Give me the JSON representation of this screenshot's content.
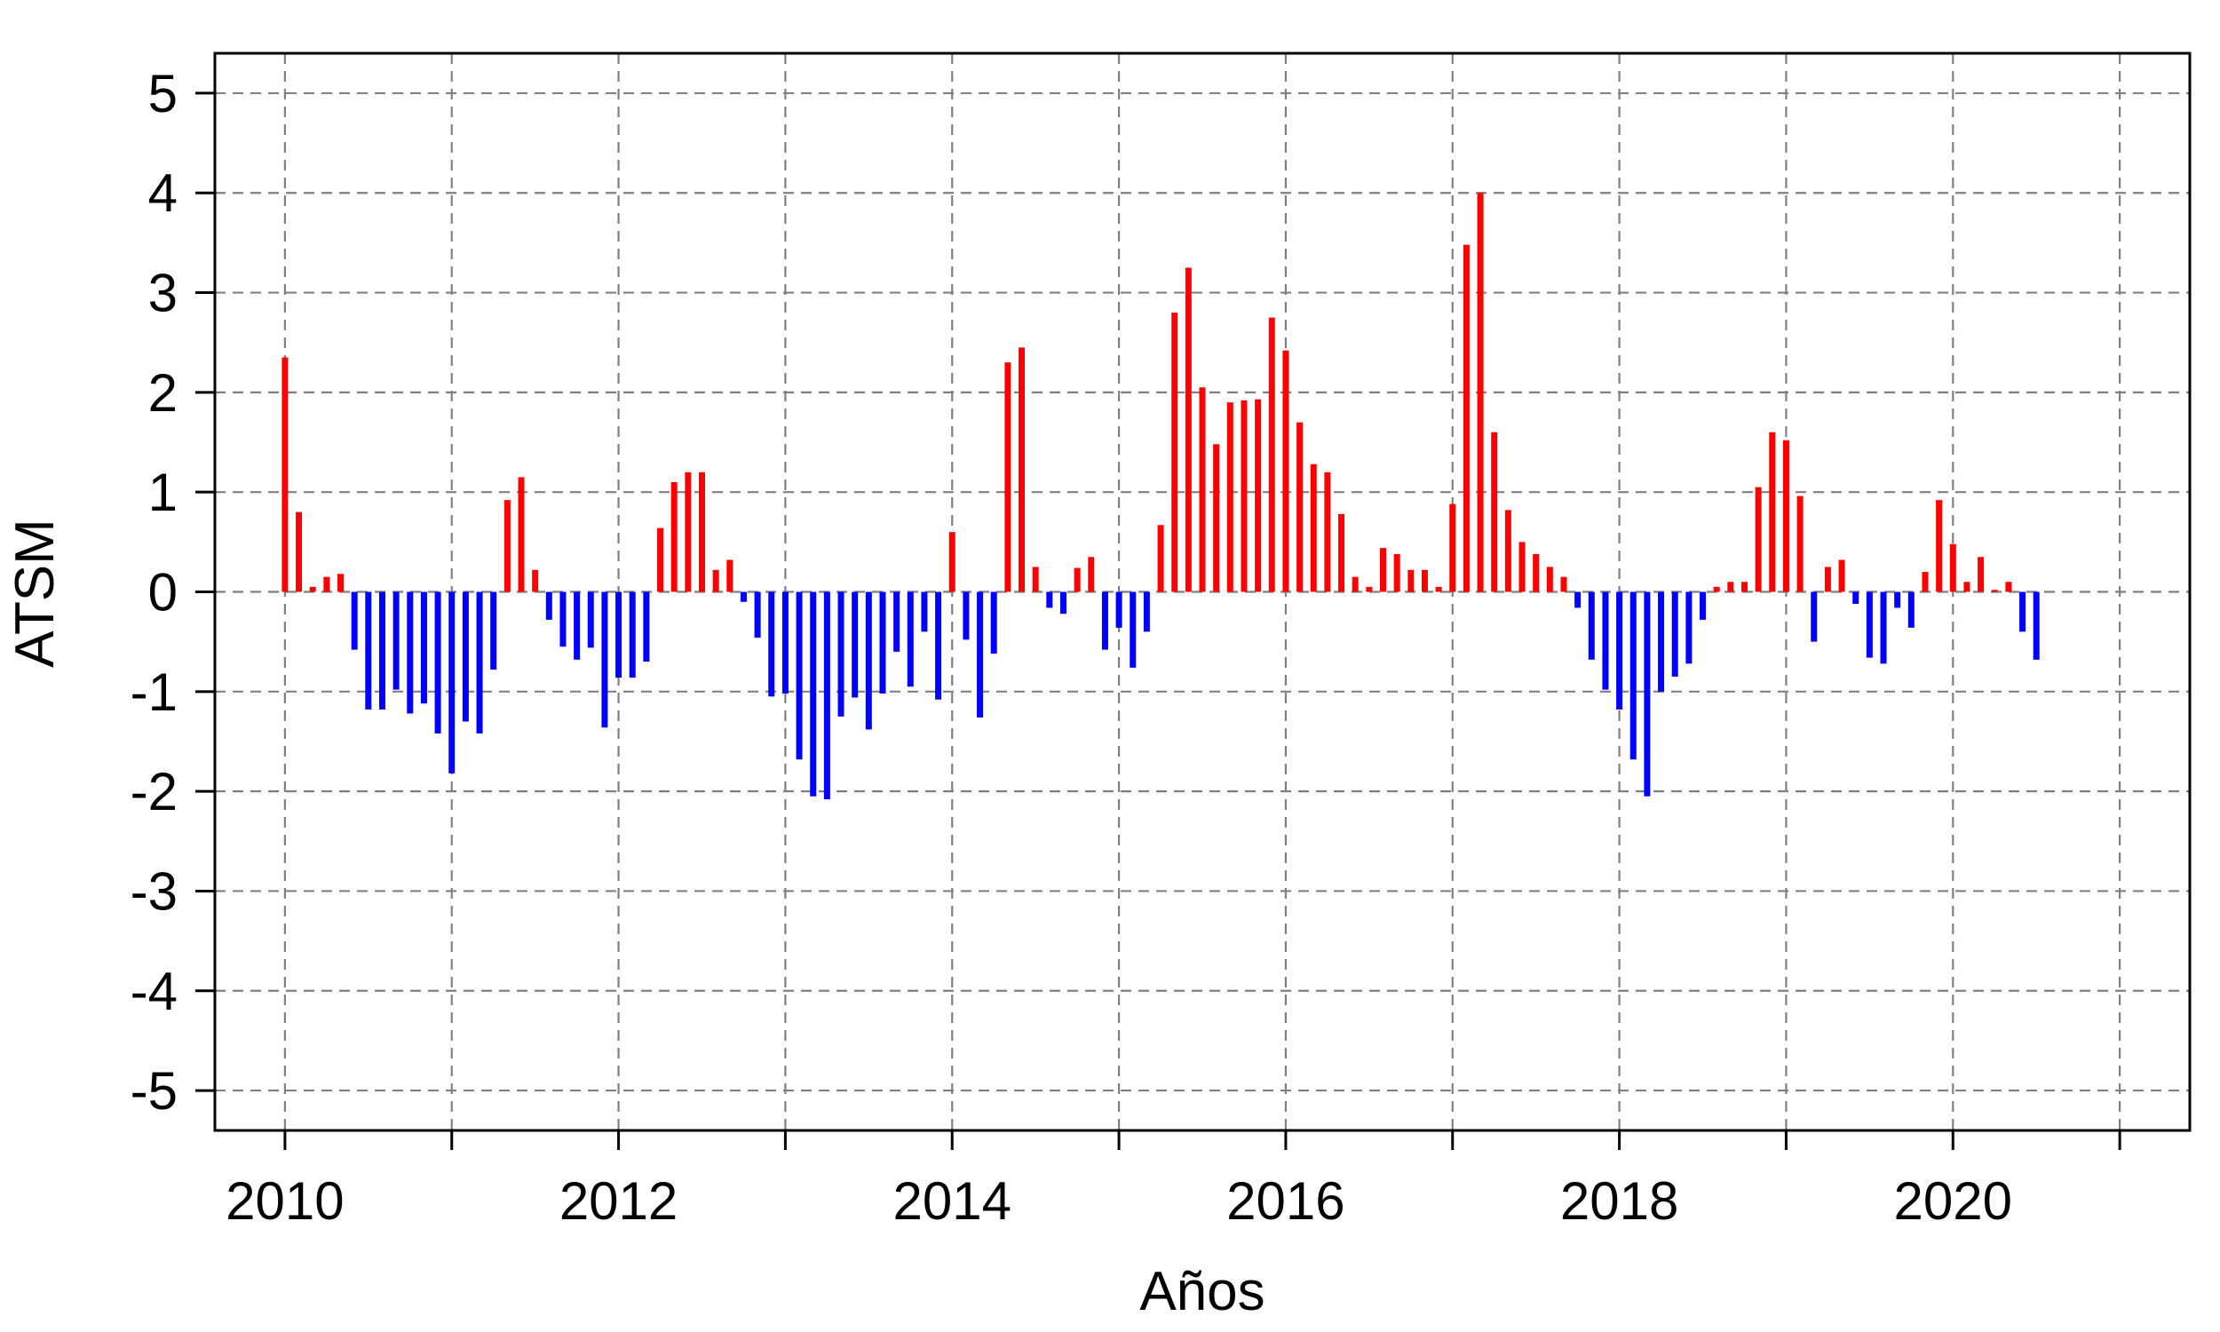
{
  "chart_data": {
    "type": "bar",
    "xlabel": "Años",
    "ylabel": "ATSM",
    "xlim": [
      2009.58,
      2021.42
    ],
    "ylim": [
      -5.4,
      5.4
    ],
    "x_ticks": [
      2010,
      2011,
      2012,
      2013,
      2014,
      2015,
      2016,
      2017,
      2018,
      2019,
      2020,
      2021
    ],
    "x_tick_labels": [
      "2010",
      "2012",
      "2014",
      "2016",
      "2018",
      "2020"
    ],
    "y_ticks": [
      -5,
      -4,
      -3,
      -2,
      -1,
      0,
      1,
      2,
      3,
      4,
      5
    ],
    "y_tick_labels": [
      "-5",
      "-4",
      "-3",
      "-2",
      "-1",
      "0",
      "1",
      "2",
      "3",
      "4",
      "5"
    ],
    "grid": true,
    "colors": {
      "positive": "#ff0000",
      "negative": "#0000ff",
      "grid": "#808080",
      "frame": "#000000"
    },
    "x_start": "2010-01",
    "x_step": "1 month",
    "values": [
      2.35,
      0.8,
      0.05,
      0.15,
      0.18,
      -0.58,
      -1.18,
      -1.18,
      -0.98,
      -1.22,
      -1.12,
      -1.42,
      -1.82,
      -1.3,
      -1.42,
      -0.78,
      0.92,
      1.15,
      0.22,
      -0.28,
      -0.55,
      -0.68,
      -0.56,
      -1.36,
      -0.86,
      -0.86,
      -0.7,
      0.64,
      1.1,
      1.2,
      1.2,
      0.22,
      0.32,
      -0.1,
      -0.46,
      -1.05,
      -1.02,
      -1.68,
      -2.05,
      -2.08,
      -1.25,
      -1.06,
      -1.38,
      -1.02,
      -0.6,
      -0.95,
      -0.4,
      -1.08,
      0.6,
      -0.48,
      -1.26,
      -0.62,
      2.3,
      2.45,
      0.25,
      -0.16,
      -0.22,
      0.24,
      0.35,
      -0.58,
      -0.36,
      -0.76,
      -0.4,
      0.67,
      2.8,
      3.25,
      2.05,
      1.48,
      1.9,
      1.92,
      1.93,
      2.75,
      2.42,
      1.7,
      1.28,
      1.2,
      0.78,
      0.15,
      0.05,
      0.44,
      0.38,
      0.22,
      0.22,
      0.05,
      0.88,
      3.48,
      4.0,
      1.6,
      0.82,
      0.5,
      0.38,
      0.25,
      0.15,
      -0.16,
      -0.68,
      -0.98,
      -1.18,
      -1.68,
      -2.05,
      -1.0,
      -0.85,
      -0.72,
      -0.28,
      0.05,
      0.1,
      0.1,
      1.05,
      1.6,
      1.52,
      0.96,
      -0.5,
      0.25,
      0.32,
      -0.12,
      -0.66,
      -0.72,
      -0.16,
      -0.36,
      0.2,
      0.92,
      0.48,
      0.1,
      0.35,
      0.02,
      0.1,
      -0.4,
      -0.68
    ]
  }
}
